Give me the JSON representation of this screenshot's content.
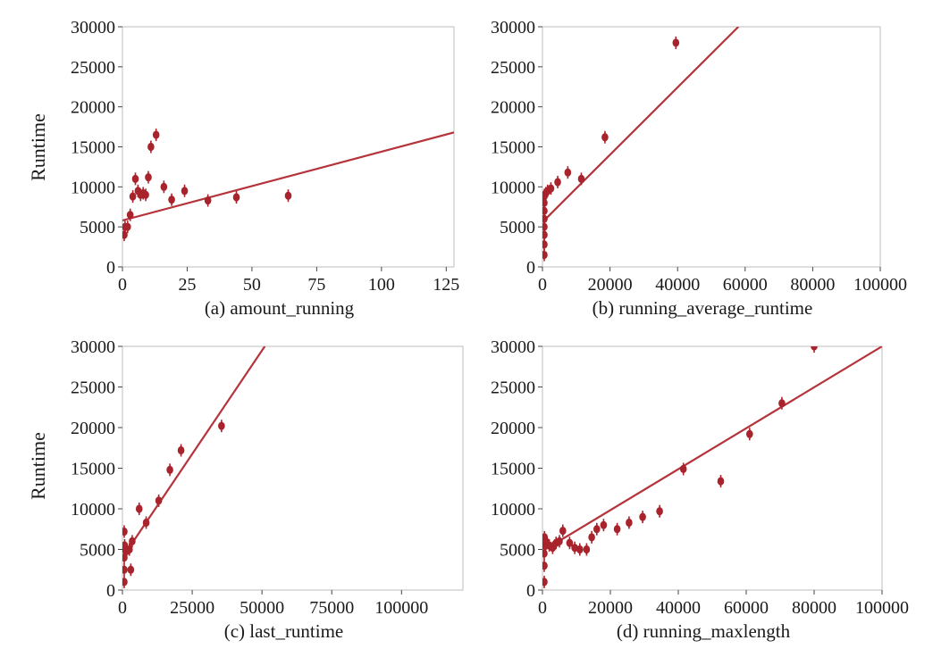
{
  "chart_data": [
    {
      "type": "scatter",
      "caption": "(a) amount_running",
      "xlabel": "",
      "ylabel": "Runtime",
      "xlim": [
        0,
        128
      ],
      "ylim": [
        0,
        30000
      ],
      "xticks": [
        0,
        25,
        50,
        75,
        100,
        125
      ],
      "yticks": [
        0,
        5000,
        10000,
        15000,
        20000,
        25000,
        30000
      ],
      "points": [
        [
          0,
          4000
        ],
        [
          1,
          5000
        ],
        [
          2,
          5000
        ],
        [
          3,
          6500
        ],
        [
          4,
          8800
        ],
        [
          5,
          11000
        ],
        [
          6,
          9500
        ],
        [
          7,
          9000
        ],
        [
          8,
          9200
        ],
        [
          9,
          9000
        ],
        [
          10,
          11200
        ],
        [
          11,
          15000
        ],
        [
          13,
          16500
        ],
        [
          16,
          10000
        ],
        [
          19,
          8400
        ],
        [
          24,
          9500
        ],
        [
          33,
          8300
        ],
        [
          44,
          8700
        ],
        [
          64,
          8900
        ]
      ],
      "fit": [
        [
          0,
          5800
        ],
        [
          128,
          16800
        ]
      ]
    },
    {
      "type": "scatter",
      "caption": "(b) running_average_runtime",
      "xlabel": "",
      "ylabel": "",
      "xlim": [
        0,
        100000
      ],
      "ylim": [
        0,
        30000
      ],
      "xticks": [
        0,
        20000,
        40000,
        60000,
        80000,
        100000
      ],
      "yticks": [
        0,
        5000,
        10000,
        15000,
        20000,
        25000,
        30000
      ],
      "points": [
        [
          0,
          1500
        ],
        [
          0,
          2800
        ],
        [
          0,
          4000
        ],
        [
          100,
          5000
        ],
        [
          100,
          6000
        ],
        [
          200,
          7000
        ],
        [
          300,
          8000
        ],
        [
          400,
          8800
        ],
        [
          600,
          9000
        ],
        [
          1000,
          9200
        ],
        [
          1500,
          9500
        ],
        [
          2500,
          9800
        ],
        [
          4500,
          10600
        ],
        [
          7500,
          11800
        ],
        [
          11500,
          11000
        ],
        [
          18500,
          16200
        ],
        [
          39500,
          28000
        ]
      ],
      "fit": [
        [
          0,
          5600
        ],
        [
          58000,
          30000
        ]
      ]
    },
    {
      "type": "scatter",
      "caption": "(c) last_runtime",
      "xlabel": "",
      "ylabel": "Runtime",
      "xlim": [
        0,
        122000
      ],
      "ylim": [
        0,
        30000
      ],
      "xticks": [
        0,
        25000,
        50000,
        75000,
        100000
      ],
      "yticks": [
        0,
        5000,
        10000,
        15000,
        20000,
        25000,
        30000
      ],
      "points": [
        [
          0,
          1000
        ],
        [
          100,
          2500
        ],
        [
          200,
          4000
        ],
        [
          300,
          5000
        ],
        [
          400,
          7200
        ],
        [
          800,
          5500
        ],
        [
          1500,
          4800
        ],
        [
          2500,
          5000
        ],
        [
          3000,
          2500
        ],
        [
          3500,
          6000
        ],
        [
          6000,
          10000
        ],
        [
          8500,
          8300
        ],
        [
          13000,
          11000
        ],
        [
          17000,
          14800
        ],
        [
          21000,
          17200
        ],
        [
          35500,
          20200
        ]
      ],
      "fit": [
        [
          0,
          4000
        ],
        [
          51000,
          30000
        ]
      ]
    },
    {
      "type": "scatter",
      "caption": "(d) running_maxlength",
      "xlabel": "",
      "ylabel": "",
      "xlim": [
        0,
        100000
      ],
      "ylim": [
        0,
        30000
      ],
      "xticks": [
        0,
        20000,
        40000,
        60000,
        80000,
        100000
      ],
      "yticks": [
        0,
        5000,
        10000,
        15000,
        20000,
        25000,
        30000
      ],
      "points": [
        [
          0,
          1000
        ],
        [
          100,
          3000
        ],
        [
          200,
          4500
        ],
        [
          400,
          5500
        ],
        [
          600,
          6500
        ],
        [
          1000,
          6000
        ],
        [
          2000,
          5500
        ],
        [
          3000,
          5200
        ],
        [
          4000,
          5800
        ],
        [
          5000,
          6000
        ],
        [
          6000,
          7300
        ],
        [
          8000,
          5800
        ],
        [
          9500,
          5200
        ],
        [
          11000,
          5000
        ],
        [
          13000,
          5000
        ],
        [
          14500,
          6500
        ],
        [
          16000,
          7500
        ],
        [
          18000,
          8000
        ],
        [
          22000,
          7500
        ],
        [
          25500,
          8300
        ],
        [
          29500,
          9000
        ],
        [
          34500,
          9700
        ],
        [
          41500,
          14900
        ],
        [
          52500,
          13400
        ],
        [
          61000,
          19200
        ],
        [
          70500,
          23000
        ],
        [
          80000,
          30000
        ]
      ],
      "fit": [
        [
          0,
          4800
        ],
        [
          100000,
          30000
        ]
      ]
    }
  ]
}
